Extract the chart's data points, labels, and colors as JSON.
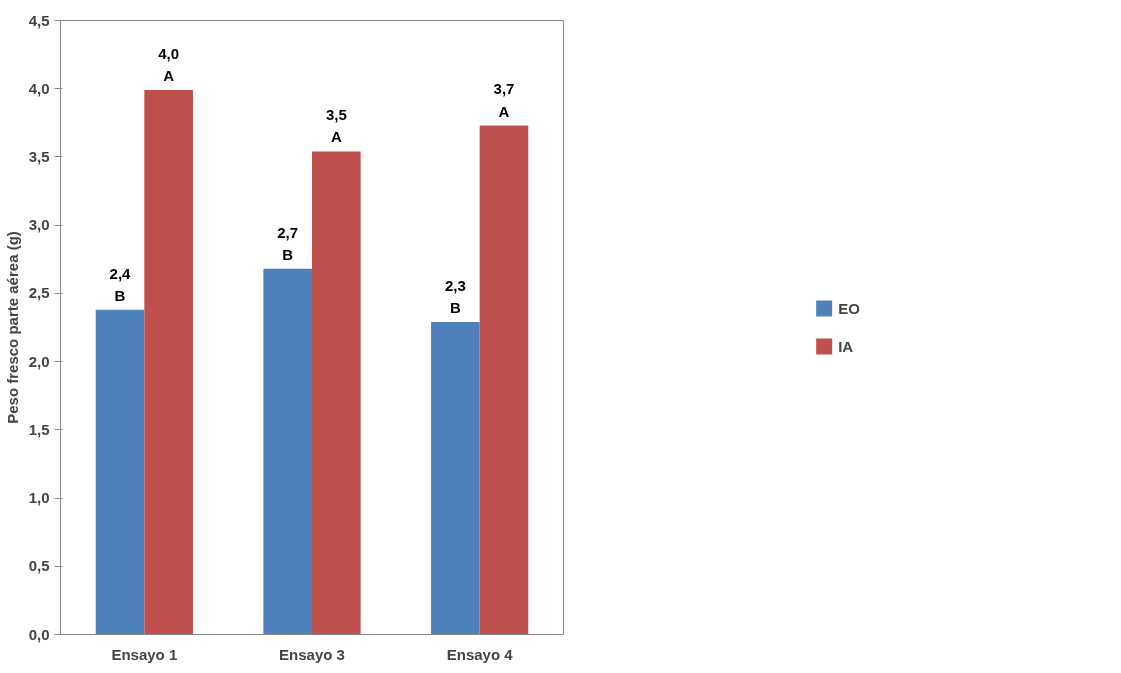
{
  "chart_data": {
    "type": "bar",
    "ylabel": "Peso fresco parte aérea (g)",
    "categories": [
      "Ensayo 1",
      "Ensayo 3",
      "Ensayo 4"
    ],
    "series": [
      {
        "name": "EO",
        "color": "#4f81bd",
        "values": [
          2.38,
          2.68,
          2.29
        ],
        "value_labels": [
          "2,4\nB",
          "2,7\nB",
          "2,3\nB"
        ]
      },
      {
        "name": "IA",
        "color": "#c0504d",
        "values": [
          3.99,
          3.54,
          3.73
        ],
        "value_labels": [
          "4,0\nA",
          "3,5\nA",
          "3,7\nA"
        ]
      }
    ],
    "ylim": [
      0,
      4.5
    ],
    "yticks": [
      {
        "value": 0,
        "label": "0,0"
      },
      {
        "value": 0.5,
        "label": "0,5"
      },
      {
        "value": 1,
        "label": "1,0"
      },
      {
        "value": 1.5,
        "label": "1,5"
      },
      {
        "value": 2,
        "label": "2,0"
      },
      {
        "value": 2.5,
        "label": "2,5"
      },
      {
        "value": 3,
        "label": "3,0"
      },
      {
        "value": 3.5,
        "label": "3,5"
      },
      {
        "value": 4,
        "label": "4,0"
      },
      {
        "value": 4.5,
        "label": "4,5"
      }
    ],
    "grid": false,
    "legend": "right"
  }
}
